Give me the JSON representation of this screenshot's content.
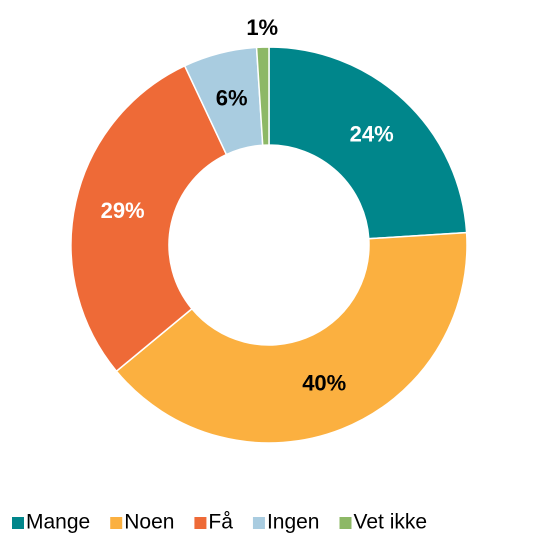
{
  "chart_data": {
    "type": "donut",
    "categories": [
      "Mange",
      "Noen",
      "Få",
      "Ingen",
      "Vet ikke"
    ],
    "values": [
      24,
      40,
      29,
      6,
      1
    ],
    "value_labels": [
      "24%",
      "40%",
      "29%",
      "6%",
      "1%"
    ],
    "colors": [
      "#00868b",
      "#fbb040",
      "#ee6a37",
      "#a9cce0",
      "#8db866"
    ],
    "legend": "bottom"
  }
}
